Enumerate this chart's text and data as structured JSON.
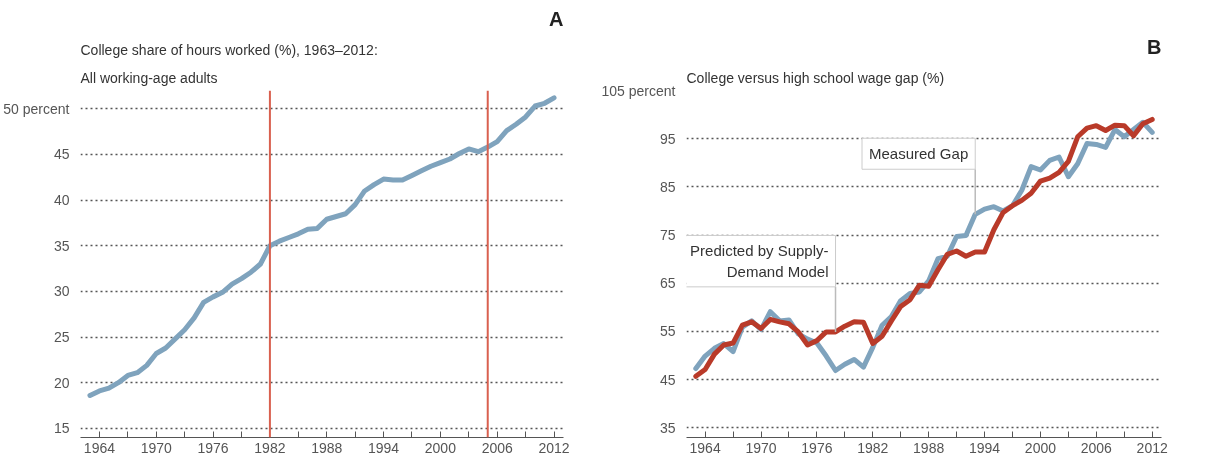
{
  "chart_data": [
    {
      "type": "line",
      "title": "College share of hours worked (%), 1963–2012:",
      "subtitle": "All working-age adults",
      "annotations": [
        "A"
      ],
      "x": [
        1963,
        1964,
        1965,
        1966,
        1967,
        1968,
        1969,
        1970,
        1971,
        1972,
        1973,
        1974,
        1975,
        1976,
        1977,
        1978,
        1979,
        1980,
        1981,
        1982,
        1983,
        1984,
        1985,
        1986,
        1987,
        1988,
        1989,
        1990,
        1991,
        1992,
        1993,
        1994,
        1995,
        1996,
        1997,
        1998,
        1999,
        2000,
        2001,
        2002,
        2003,
        2004,
        2005,
        2006,
        2007,
        2008,
        2009,
        2010,
        2011,
        2012
      ],
      "series": [
        {
          "color": "#7fa3bd",
          "values": [
            18.6,
            19.1,
            19.4,
            20.0,
            20.8,
            21.1,
            21.9,
            23.2,
            23.8,
            24.8,
            25.8,
            27.1,
            28.8,
            29.4,
            29.9,
            30.8,
            31.4,
            32.1,
            33.0,
            35.0,
            35.5,
            35.9,
            36.3,
            36.8,
            36.9,
            37.9,
            38.2,
            38.5,
            39.5,
            41.0,
            41.7,
            42.3,
            42.2,
            42.2,
            42.7,
            43.2,
            43.7,
            44.1,
            44.5,
            45.1,
            45.6,
            45.3,
            45.8,
            46.4,
            47.6,
            48.3,
            49.1,
            50.3,
            50.6,
            51.2
          ]
        }
      ],
      "xlim": [
        1962,
        2013
      ],
      "ylim": [
        14,
        52
      ],
      "xticks": [
        1964,
        {
          "value": 1967,
          "label": null
        },
        1970,
        {
          "value": 1973,
          "label": null
        },
        1976,
        {
          "value": 1979,
          "label": null
        },
        1982,
        {
          "value": 1985,
          "label": null
        },
        1988,
        {
          "value": 1991,
          "label": null
        },
        1994,
        {
          "value": 1997,
          "label": null
        },
        2000,
        {
          "value": 2003,
          "label": null
        },
        2006,
        {
          "value": 2009,
          "label": null
        },
        2012
      ],
      "yticks": [
        15,
        20,
        25,
        30,
        35,
        40,
        45,
        {
          "value": 50,
          "label": "50 percent"
        }
      ],
      "ref_lines": [
        {
          "axis": "x",
          "value": 1982,
          "color": "#d9604f"
        },
        {
          "axis": "x",
          "value": 2005,
          "color": "#d9604f"
        }
      ],
      "grid": "y"
    },
    {
      "type": "line",
      "title": "College versus high school wage gap (%)",
      "annotations": [
        "B",
        {
          "text": "Measured Gap",
          "x": 1993,
          "y": 79.3
        },
        {
          "text": "Predicted by Supply-Demand Model",
          "x": 1978,
          "y": 54.9
        }
      ],
      "x": [
        1963,
        1964,
        1965,
        1966,
        1967,
        1968,
        1969,
        1970,
        1971,
        1972,
        1973,
        1974,
        1975,
        1976,
        1977,
        1978,
        1979,
        1980,
        1981,
        1982,
        1983,
        1984,
        1985,
        1986,
        1987,
        1988,
        1989,
        1990,
        1991,
        1992,
        1993,
        1994,
        1995,
        1996,
        1997,
        1998,
        1999,
        2000,
        2001,
        2002,
        2003,
        2004,
        2005,
        2006,
        2007,
        2008,
        2009,
        2010,
        2011,
        2012
      ],
      "series": [
        {
          "color": "#7fa3bd",
          "values": [
            47.3,
            49.9,
            51.5,
            52.5,
            50.8,
            55.9,
            57.2,
            55.4,
            59.1,
            57.2,
            57.4,
            54.5,
            53.4,
            52.6,
            49.9,
            46.9,
            48.2,
            49.2,
            47.6,
            51.7,
            56.3,
            58.1,
            61.4,
            62.9,
            63.2,
            65.5,
            70.1,
            70.6,
            74.7,
            74.9,
            79.3,
            80.4,
            80.9,
            80.0,
            81.1,
            84.3,
            89.2,
            88.5,
            90.5,
            91.2,
            87.1,
            89.8,
            94.0,
            93.8,
            93.2,
            96.9,
            95.4,
            96.9,
            98.4,
            96.3
          ]
        },
        {
          "color": "#b93a29",
          "values": [
            45.7,
            47.1,
            50.3,
            52.2,
            52.6,
            56.3,
            57.0,
            55.6,
            57.5,
            57.0,
            56.6,
            54.9,
            52.2,
            53.1,
            54.9,
            54.9,
            56.1,
            57.0,
            56.9,
            52.5,
            54.0,
            57.2,
            60.2,
            61.6,
            64.6,
            64.4,
            67.8,
            71.0,
            71.7,
            70.6,
            71.5,
            71.5,
            76.1,
            79.7,
            81.1,
            82.2,
            83.7,
            86.2,
            86.8,
            88.0,
            90.3,
            95.4,
            97.2,
            97.7,
            96.7,
            97.8,
            97.7,
            95.6,
            98.1,
            99.0
          ]
        }
      ],
      "xlim": [
        1962,
        2013
      ],
      "ylim": [
        33,
        105
      ],
      "xticks": [
        1964,
        {
          "value": 1967,
          "label": null
        },
        1970,
        {
          "value": 1973,
          "label": null
        },
        1976,
        {
          "value": 1979,
          "label": null
        },
        1982,
        {
          "value": 1985,
          "label": null
        },
        1988,
        {
          "value": 1991,
          "label": null
        },
        1994,
        {
          "value": 1997,
          "label": null
        },
        2000,
        {
          "value": 2003,
          "label": null
        },
        2006,
        {
          "value": 2009,
          "label": null
        },
        2012
      ],
      "yticks": [
        35,
        45,
        55,
        65,
        75,
        85,
        95,
        {
          "value": 105,
          "label": "105 percent"
        }
      ],
      "grid": "y"
    }
  ]
}
